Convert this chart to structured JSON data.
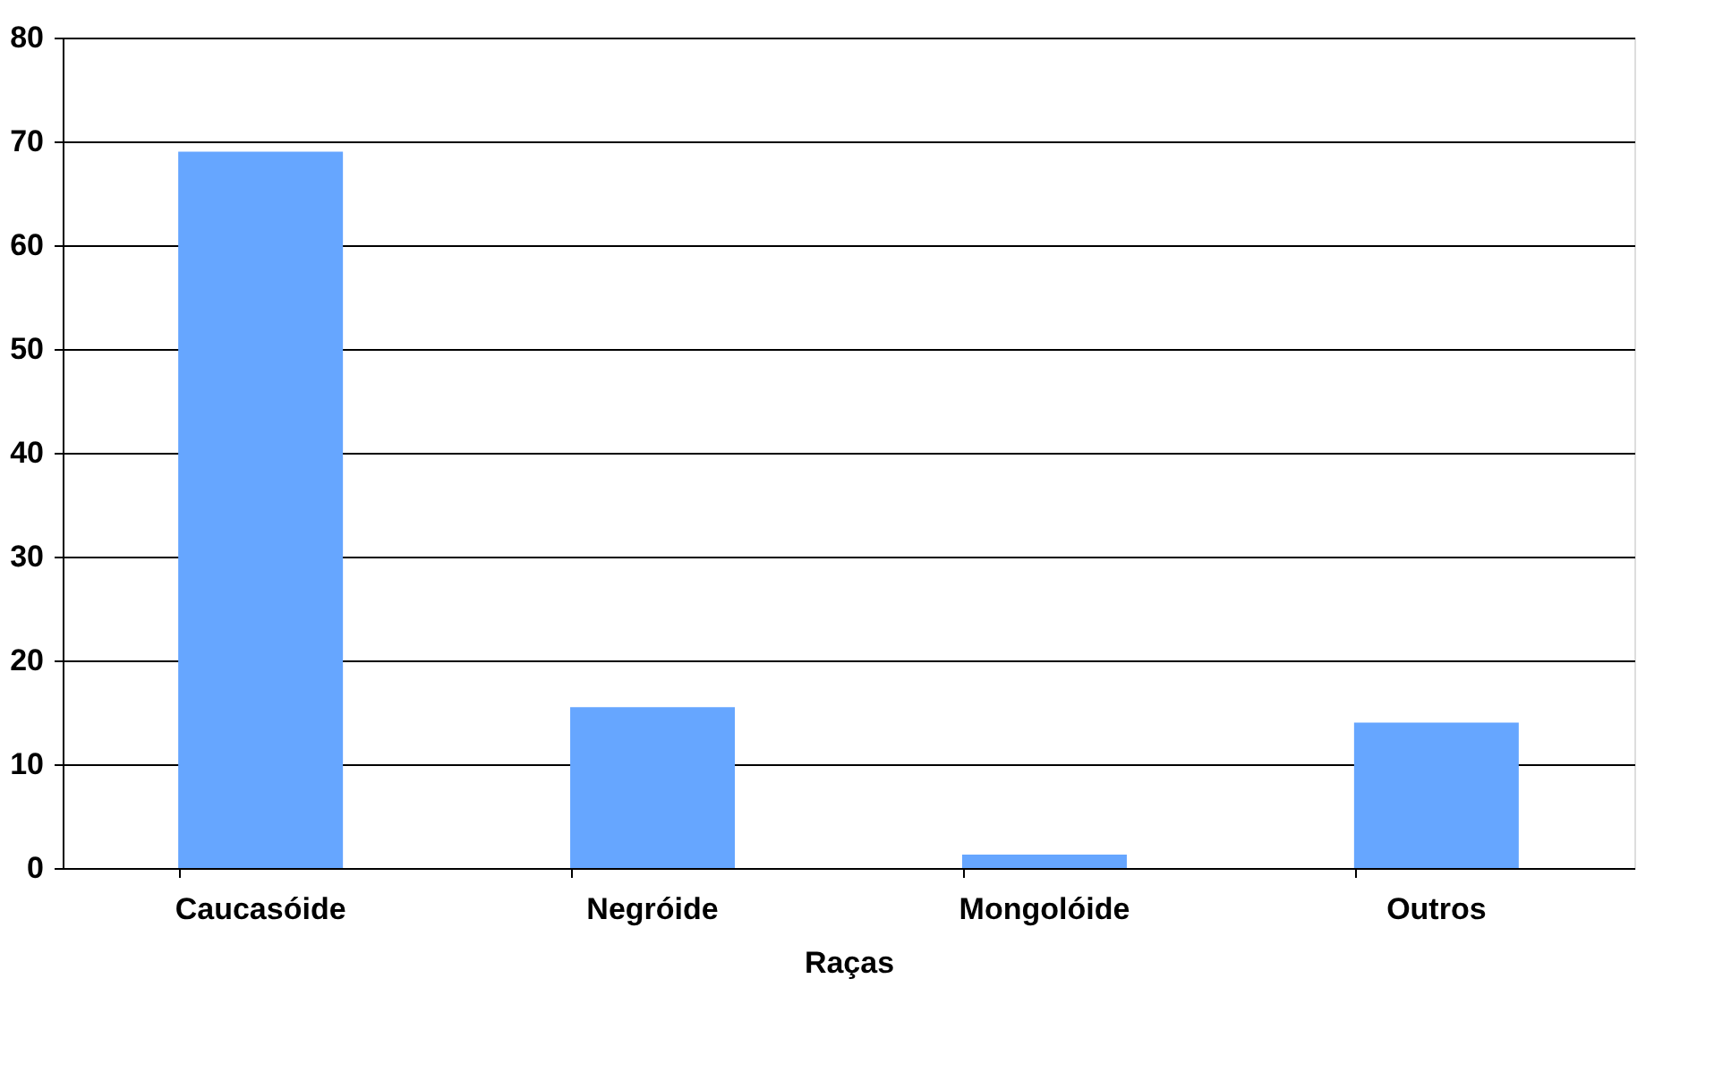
{
  "chart_data": {
    "type": "bar",
    "xlabel": "Raças",
    "categories": [
      "Caucasóide",
      "Negróide",
      "Mongolóide",
      "Outros"
    ],
    "values": [
      69,
      15.5,
      1.3,
      14
    ],
    "color": "#66a6ff",
    "ylim": [
      0,
      80
    ],
    "yticks": [
      0,
      10,
      20,
      30,
      40,
      50,
      60,
      70,
      80
    ],
    "grid": "y"
  }
}
